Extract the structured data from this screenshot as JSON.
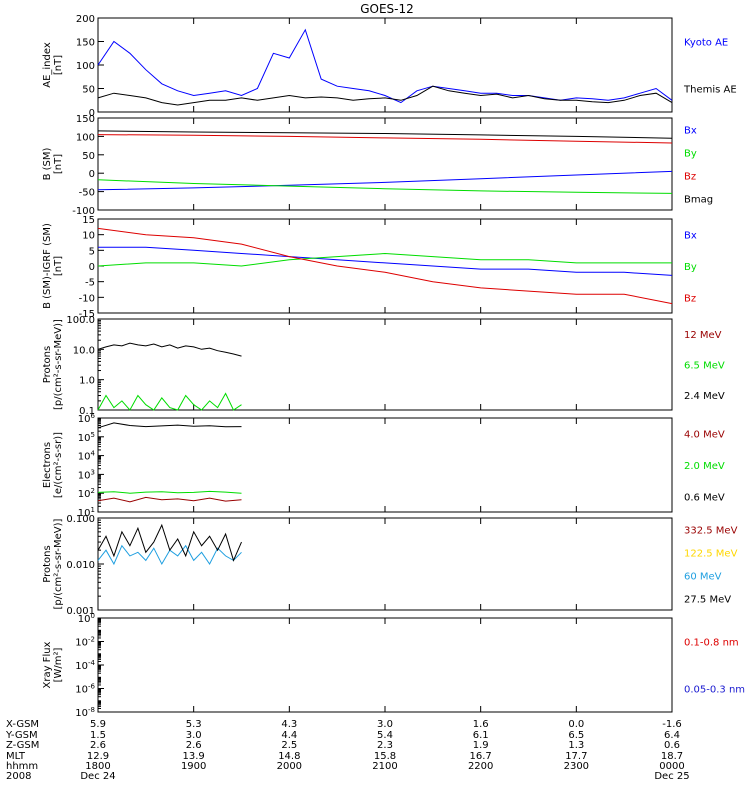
{
  "title": "GOES-12",
  "colors": {
    "black": "#000000",
    "blue": "#0000ff",
    "red": "#dd0000",
    "green": "#00dd00",
    "darkred": "#990000",
    "yellow": "#ffd700",
    "cyan": "#1f9fe0",
    "navy": "#1a1ad0"
  },
  "x_axis": {
    "ticks": [
      "1800",
      "1900",
      "2000",
      "2100",
      "2200",
      "2300",
      "0000"
    ],
    "row_labels": [
      "X-GSM",
      "Y-GSM",
      "Z-GSM",
      "MLT",
      "hhmm",
      "2008"
    ],
    "rows": [
      [
        "5.9",
        "5.3",
        "4.3",
        "3.0",
        "1.6",
        "0.0",
        "-1.6"
      ],
      [
        "1.5",
        "3.0",
        "4.4",
        "5.4",
        "6.1",
        "6.5",
        "6.4"
      ],
      [
        "2.6",
        "2.6",
        "2.5",
        "2.3",
        "1.9",
        "1.3",
        "0.6"
      ],
      [
        "12.9",
        "13.9",
        "14.8",
        "15.8",
        "16.7",
        "17.7",
        "18.7"
      ],
      [
        "1800",
        "1900",
        "2000",
        "2100",
        "2200",
        "2300",
        "0000"
      ]
    ],
    "date_labels": [
      {
        "text": "Dec 24",
        "tick_index": 0
      },
      {
        "text": "Dec 25",
        "tick_index": 6
      }
    ]
  },
  "chart_data": [
    {
      "type": "line",
      "ylabel_lines": [
        "AE_index",
        "[nT]"
      ],
      "ylim": [
        0,
        200
      ],
      "yticks": [
        "0",
        "50",
        "100",
        "150",
        "200"
      ],
      "scale": "linear",
      "series": [
        {
          "name": "Kyoto AE",
          "color": "blue",
          "x": [
            "18:00",
            "18:10",
            "18:20",
            "18:30",
            "18:40",
            "18:50",
            "19:00",
            "19:10",
            "19:20",
            "19:30",
            "19:40",
            "19:50",
            "20:00",
            "20:10",
            "20:20",
            "20:30",
            "20:40",
            "20:50",
            "21:00",
            "21:10",
            "21:20",
            "21:30",
            "21:40",
            "21:50",
            "22:00",
            "22:10",
            "22:20",
            "22:30",
            "22:40",
            "22:50",
            "23:00",
            "23:10",
            "23:20",
            "23:30",
            "23:40",
            "23:50",
            "00:00"
          ],
          "y": [
            100,
            150,
            125,
            90,
            60,
            45,
            35,
            40,
            45,
            35,
            50,
            125,
            115,
            175,
            70,
            55,
            50,
            45,
            35,
            20,
            45,
            55,
            50,
            45,
            40,
            40,
            35,
            35,
            30,
            25,
            30,
            28,
            25,
            30,
            40,
            50,
            25
          ]
        },
        {
          "name": "Themis AE",
          "color": "black",
          "x": [
            "18:00",
            "18:10",
            "18:20",
            "18:30",
            "18:40",
            "18:50",
            "19:00",
            "19:10",
            "19:20",
            "19:30",
            "19:40",
            "19:50",
            "20:00",
            "20:10",
            "20:20",
            "20:30",
            "20:40",
            "20:50",
            "21:00",
            "21:10",
            "21:20",
            "21:30",
            "21:40",
            "21:50",
            "22:00",
            "22:10",
            "22:20",
            "22:30",
            "22:40",
            "22:50",
            "23:00",
            "23:10",
            "23:20",
            "23:30",
            "23:40",
            "23:50",
            "00:00"
          ],
          "y": [
            30,
            40,
            35,
            30,
            20,
            15,
            20,
            25,
            25,
            30,
            25,
            30,
            35,
            30,
            32,
            30,
            25,
            28,
            30,
            25,
            35,
            55,
            45,
            40,
            35,
            38,
            30,
            35,
            28,
            25,
            25,
            22,
            20,
            25,
            35,
            40,
            20
          ]
        }
      ]
    },
    {
      "type": "line",
      "ylabel_lines": [
        "B (SM)",
        "[nT]"
      ],
      "ylim": [
        -100,
        150
      ],
      "yticks": [
        "-100",
        "-50",
        "0",
        "50",
        "100",
        "150"
      ],
      "scale": "linear",
      "series": [
        {
          "name": "Bx",
          "color": "blue",
          "x": [
            "18:00",
            "19:00",
            "20:00",
            "21:00",
            "22:00",
            "23:00",
            "00:00"
          ],
          "y": [
            -45,
            -40,
            -33,
            -25,
            -15,
            -5,
            5
          ]
        },
        {
          "name": "By",
          "color": "green",
          "x": [
            "18:00",
            "19:00",
            "20:00",
            "21:00",
            "22:00",
            "23:00",
            "00:00"
          ],
          "y": [
            -18,
            -28,
            -35,
            -42,
            -48,
            -52,
            -55
          ]
        },
        {
          "name": "Bz",
          "color": "red",
          "x": [
            "18:00",
            "19:00",
            "20:00",
            "21:00",
            "22:00",
            "23:00",
            "00:00"
          ],
          "y": [
            105,
            103,
            100,
            96,
            92,
            87,
            82
          ]
        },
        {
          "name": "Bmag",
          "color": "black",
          "x": [
            "18:00",
            "19:00",
            "20:00",
            "21:00",
            "22:00",
            "23:00",
            "00:00"
          ],
          "y": [
            115,
            112,
            110,
            108,
            104,
            100,
            95
          ]
        }
      ]
    },
    {
      "type": "line",
      "ylabel_lines": [
        "B (SM)-IGRF (SM)",
        "[nT]"
      ],
      "ylim": [
        -15,
        15
      ],
      "yticks": [
        "-15",
        "-10",
        "-5",
        "0",
        "5",
        "10",
        "15"
      ],
      "scale": "linear",
      "series": [
        {
          "name": "Bx",
          "color": "blue",
          "x": [
            "18:00",
            "18:30",
            "19:00",
            "19:30",
            "20:00",
            "20:30",
            "21:00",
            "21:30",
            "22:00",
            "22:30",
            "23:00",
            "23:30",
            "00:00"
          ],
          "y": [
            6,
            6,
            5,
            4,
            3,
            2,
            1,
            0,
            -1,
            -1,
            -2,
            -2,
            -3
          ]
        },
        {
          "name": "By",
          "color": "green",
          "x": [
            "18:00",
            "18:30",
            "19:00",
            "19:30",
            "20:00",
            "20:30",
            "21:00",
            "21:30",
            "22:00",
            "22:30",
            "23:00",
            "23:30",
            "00:00"
          ],
          "y": [
            0,
            1,
            1,
            0,
            2,
            3,
            4,
            3,
            2,
            2,
            1,
            1,
            1
          ]
        },
        {
          "name": "Bz",
          "color": "red",
          "x": [
            "18:00",
            "18:30",
            "19:00",
            "19:30",
            "20:00",
            "20:30",
            "21:00",
            "21:30",
            "22:00",
            "22:30",
            "23:00",
            "23:30",
            "00:00"
          ],
          "y": [
            12,
            10,
            9,
            7,
            3,
            0,
            -2,
            -5,
            -7,
            -8,
            -9,
            -9,
            -12
          ]
        }
      ]
    },
    {
      "type": "line",
      "ylabel_lines": [
        "Protons",
        "[p/(cm²-s-sr-MeV)]"
      ],
      "ylim": [
        0.1,
        100
      ],
      "yticks": [
        "0.1",
        "1.0",
        "10.0",
        "100.0"
      ],
      "scale": "log",
      "series": [
        {
          "name": "12 MeV",
          "color": "darkred",
          "x": [],
          "y": []
        },
        {
          "name": "6.5 MeV",
          "color": "green",
          "x": [
            "18:00",
            "18:05",
            "18:10",
            "18:15",
            "18:20",
            "18:25",
            "18:30",
            "18:35",
            "18:40",
            "18:45",
            "18:50",
            "18:55",
            "19:00",
            "19:05",
            "19:10",
            "19:15",
            "19:20",
            "19:25",
            "19:30"
          ],
          "y": [
            0.1,
            0.3,
            0.12,
            0.2,
            0.1,
            0.3,
            0.15,
            0.1,
            0.25,
            0.12,
            0.1,
            0.3,
            0.15,
            0.1,
            0.2,
            0.12,
            0.35,
            0.1,
            0.15
          ]
        },
        {
          "name": "2.4 MeV",
          "color": "black",
          "x": [
            "18:00",
            "18:05",
            "18:10",
            "18:15",
            "18:20",
            "18:25",
            "18:30",
            "18:35",
            "18:40",
            "18:45",
            "18:50",
            "18:55",
            "19:00",
            "19:05",
            "19:10",
            "19:15",
            "19:20",
            "19:25",
            "19:30"
          ],
          "y": [
            10,
            12,
            14,
            13,
            16,
            14,
            13,
            15,
            12,
            14,
            11,
            13,
            12,
            10,
            11,
            9,
            8,
            7,
            6
          ]
        }
      ]
    },
    {
      "type": "line",
      "ylabel_lines": [
        "Electrons",
        "[e/(cm²-s-sr)]"
      ],
      "ylim_exp": [
        1,
        6
      ],
      "yticks_exp": [
        1,
        2,
        3,
        4,
        5,
        6
      ],
      "scale": "log",
      "series": [
        {
          "name": "4.0 MeV",
          "color": "darkred",
          "x": [
            "18:00",
            "18:10",
            "18:20",
            "18:30",
            "18:40",
            "18:50",
            "19:00",
            "19:10",
            "19:20",
            "19:30"
          ],
          "y": [
            40,
            55,
            35,
            60,
            45,
            50,
            40,
            55,
            38,
            45
          ]
        },
        {
          "name": "2.0 MeV",
          "color": "green",
          "x": [
            "18:00",
            "18:10",
            "18:20",
            "18:30",
            "18:40",
            "18:50",
            "19:00",
            "19:10",
            "19:20",
            "19:30"
          ],
          "y": [
            110,
            120,
            100,
            115,
            120,
            105,
            110,
            125,
            115,
            100
          ]
        },
        {
          "name": "0.6 MeV",
          "color": "black",
          "x": [
            "18:00",
            "18:10",
            "18:20",
            "18:30",
            "18:40",
            "18:50",
            "19:00",
            "19:10",
            "19:20",
            "19:30"
          ],
          "y": [
            300000,
            550000,
            400000,
            350000,
            380000,
            420000,
            360000,
            390000,
            340000,
            350000
          ]
        }
      ]
    },
    {
      "type": "line",
      "ylabel_lines": [
        "Protons",
        "[p/(cm²-s-sr-MeV)]"
      ],
      "ylim": [
        0.001,
        0.1
      ],
      "yticks": [
        "0.001",
        "0.010",
        "0.100"
      ],
      "scale": "log",
      "series": [
        {
          "name": "332.5 MeV",
          "color": "darkred",
          "x": [],
          "y": []
        },
        {
          "name": "122.5 MeV",
          "color": "yellow",
          "x": [],
          "y": []
        },
        {
          "name": "60 MeV",
          "color": "cyan",
          "x": [
            "18:00",
            "18:05",
            "18:10",
            "18:15",
            "18:20",
            "18:25",
            "18:30",
            "18:35",
            "18:40",
            "18:45",
            "18:50",
            "18:55",
            "19:00",
            "19:05",
            "19:10",
            "19:15",
            "19:20",
            "19:25",
            "19:30"
          ],
          "y": [
            0.012,
            0.02,
            0.01,
            0.025,
            0.015,
            0.018,
            0.012,
            0.022,
            0.01,
            0.02,
            0.015,
            0.025,
            0.012,
            0.018,
            0.01,
            0.022,
            0.015,
            0.012,
            0.018
          ]
        },
        {
          "name": "27.5 MeV",
          "color": "black",
          "x": [
            "18:00",
            "18:05",
            "18:10",
            "18:15",
            "18:20",
            "18:25",
            "18:30",
            "18:35",
            "18:40",
            "18:45",
            "18:50",
            "18:55",
            "19:00",
            "19:05",
            "19:10",
            "19:15",
            "19:20",
            "19:25",
            "19:30"
          ],
          "y": [
            0.02,
            0.04,
            0.015,
            0.05,
            0.025,
            0.06,
            0.018,
            0.03,
            0.07,
            0.02,
            0.035,
            0.015,
            0.05,
            0.025,
            0.04,
            0.02,
            0.045,
            0.012,
            0.03
          ]
        }
      ]
    },
    {
      "type": "line",
      "ylabel_lines": [
        "Xray  Flux",
        "[W/m²]"
      ],
      "ylim_exp": [
        -8,
        0
      ],
      "yticks_exp": [
        -8,
        -6,
        -4,
        -2,
        0
      ],
      "scale": "log",
      "series": [
        {
          "name": "0.1-0.8 nm",
          "color": "red",
          "x": [],
          "y": []
        },
        {
          "name": "0.05-0.3 nm",
          "color": "navy",
          "x": [],
          "y": []
        }
      ]
    }
  ]
}
